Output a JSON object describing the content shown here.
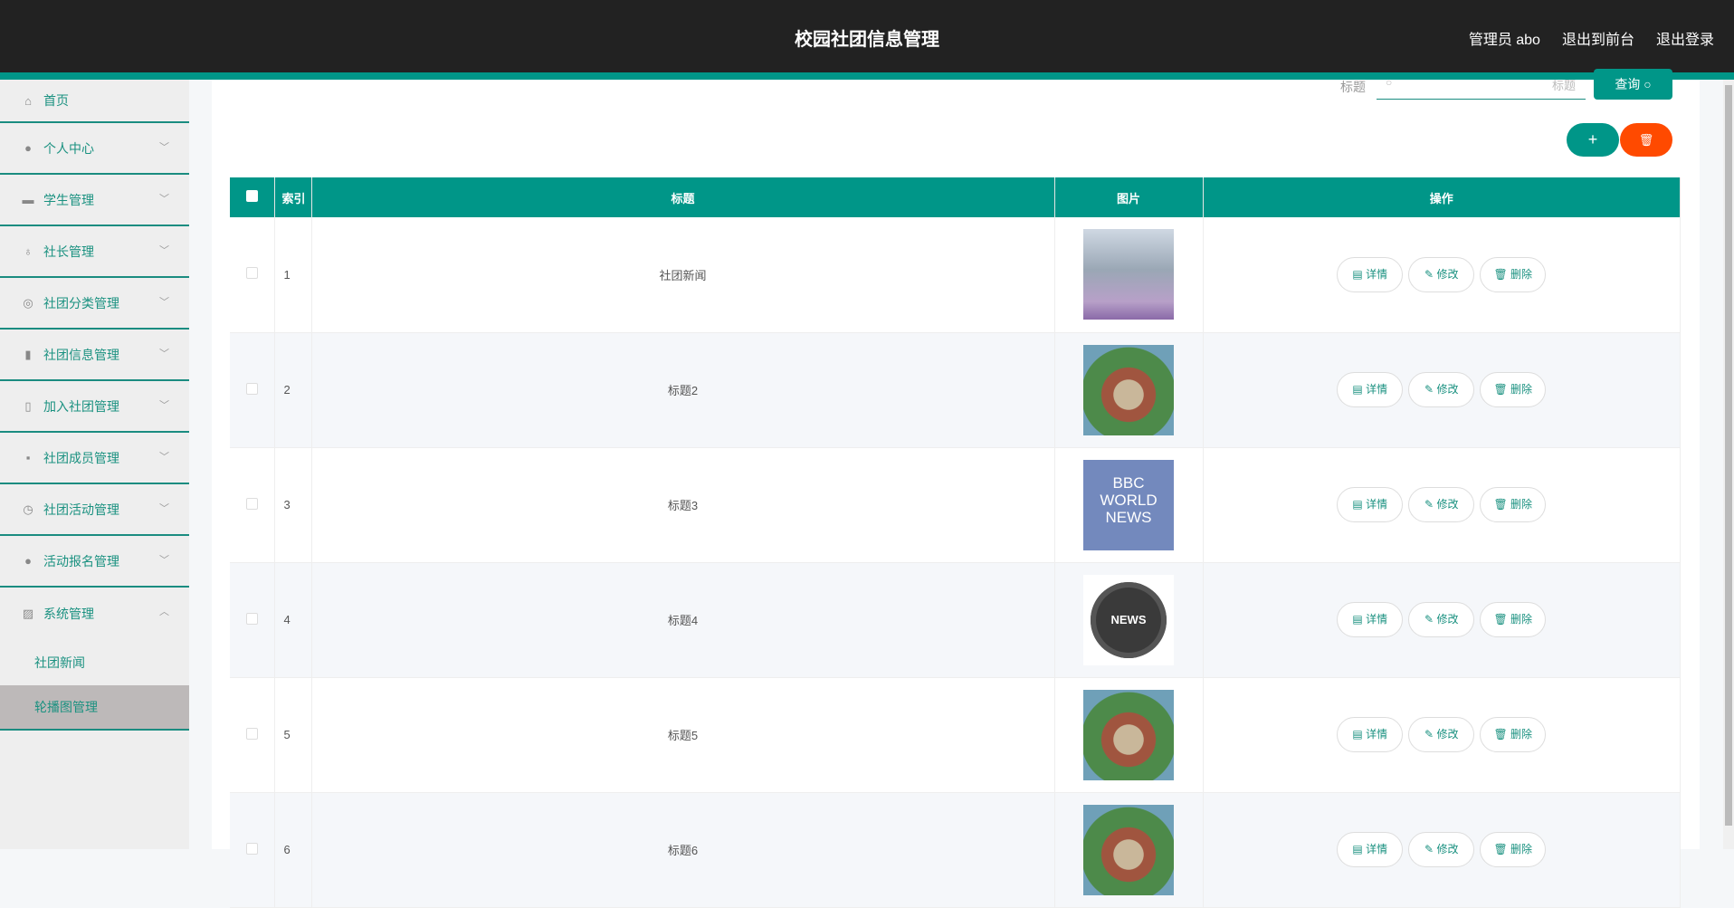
{
  "header": {
    "title": "校园社团信息管理",
    "user": "管理员 abo",
    "front": "退出到前台",
    "logout": "退出登录"
  },
  "sidebar": {
    "items": [
      {
        "label": "首页",
        "icon": "home-icon",
        "glyph": "⌂"
      },
      {
        "label": "个人中心",
        "icon": "user-icon",
        "glyph": "●"
      },
      {
        "label": "学生管理",
        "icon": "briefcase-icon",
        "glyph": "▬"
      },
      {
        "label": "社长管理",
        "icon": "microphone-icon",
        "glyph": "♁"
      },
      {
        "label": "社团分类管理",
        "icon": "lifebuoy-icon",
        "glyph": "◎"
      },
      {
        "label": "社团信息管理",
        "icon": "clipboard-icon",
        "glyph": "▮"
      },
      {
        "label": "加入社团管理",
        "icon": "mic-stand-icon",
        "glyph": "▯"
      },
      {
        "label": "社团成员管理",
        "icon": "chat-icon",
        "glyph": "▪"
      },
      {
        "label": "社团活动管理",
        "icon": "gauge-icon",
        "glyph": "◷"
      },
      {
        "label": "活动报名管理",
        "icon": "bulb-icon",
        "glyph": "●"
      },
      {
        "label": "系统管理",
        "icon": "chart-icon",
        "glyph": "▨"
      }
    ],
    "sub": [
      "社团新闻",
      "轮播图管理"
    ]
  },
  "search": {
    "label": "标题",
    "placeholder": "标题",
    "button": "查询"
  },
  "table": {
    "headers": [
      "索引",
      "标题",
      "图片",
      "操作"
    ],
    "rows": [
      {
        "index": "1",
        "title": "社团新闻",
        "image": "campus-courtyard"
      },
      {
        "index": "2",
        "title": "标题2",
        "image": "campus-aerial"
      },
      {
        "index": "3",
        "title": "标题3",
        "image": "bbc-world-news"
      },
      {
        "index": "4",
        "title": "标题4",
        "image": "news-globe"
      },
      {
        "index": "5",
        "title": "标题5",
        "image": "campus-aerial"
      },
      {
        "index": "6",
        "title": "标题6",
        "image": "campus-aerial"
      }
    ],
    "actions": [
      "详情",
      "修改",
      "删除"
    ]
  },
  "logos": {
    "bbc": "BBC WORLD NEWS",
    "news": "NEWS"
  },
  "colors": {
    "accent": "#009688",
    "danger": "#ff4a00",
    "header": "#222222"
  }
}
